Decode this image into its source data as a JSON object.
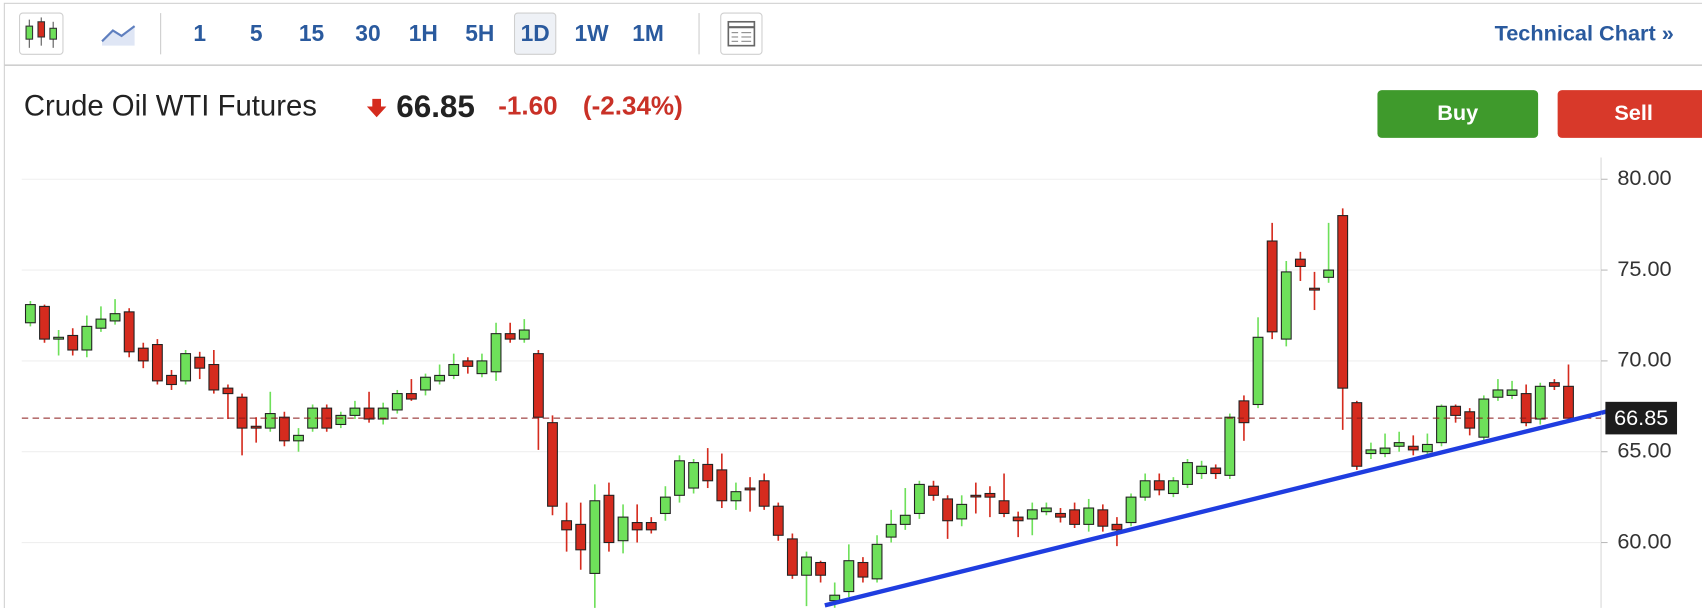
{
  "toolbar": {
    "intervals": [
      "1",
      "5",
      "15",
      "30",
      "1H",
      "5H",
      "1D",
      "1W",
      "1M"
    ],
    "active": "1D",
    "link": "Technical Chart »"
  },
  "header": {
    "name": "Crude Oil WTI Futures",
    "price": "66.85",
    "change": "-1.60",
    "change_pct": "(-2.34%)"
  },
  "buttons": {
    "buy": "Buy",
    "sell": "Sell"
  },
  "chart_data": {
    "type": "candlestick",
    "up_color": "#6ee05a",
    "down_color": "#d52b1e",
    "ylim": [
      56.4,
      81.2
    ],
    "yticks": [
      {
        "value": 60,
        "label": "60.00"
      },
      {
        "value": 65,
        "label": "65.00"
      },
      {
        "value": 70,
        "label": "70.00"
      },
      {
        "value": 75,
        "label": "75.00"
      },
      {
        "value": 80,
        "label": "80.00"
      }
    ],
    "grid": true,
    "last_price": 66.85,
    "trendline": {
      "x": [
        56.3,
        113.6
      ],
      "y": [
        56.54,
        67.58
      ],
      "color": "#1f3de0"
    },
    "open": [
      72.1,
      73.0,
      71.2,
      71.4,
      70.6,
      71.8,
      72.2,
      72.7,
      70.7,
      70.9,
      69.2,
      68.9,
      70.2,
      69.8,
      68.5,
      68.0,
      66.4,
      66.3,
      66.9,
      65.6,
      66.3,
      67.4,
      66.5,
      67.0,
      67.4,
      66.8,
      67.3,
      68.2,
      68.4,
      68.9,
      69.2,
      70.0,
      69.3,
      69.4,
      71.5,
      71.2,
      70.4,
      66.6,
      61.2,
      61.0,
      58.3,
      62.6,
      60.1,
      61.1,
      61.1,
      61.6,
      62.6,
      63.0,
      64.3,
      64.0,
      62.3,
      63.0,
      63.4,
      62.0,
      60.2,
      58.2,
      58.9,
      56.8,
      57.3,
      58.9,
      58.0,
      60.3,
      61.0,
      61.6,
      63.1,
      62.4,
      61.3,
      62.6,
      62.7,
      62.3,
      61.4,
      61.3,
      61.7,
      61.6,
      61.8,
      61.0,
      61.8,
      61.0,
      61.1,
      62.5,
      63.4,
      62.7,
      63.2,
      63.8,
      64.1,
      63.7,
      67.8,
      67.6,
      76.6,
      71.2,
      75.6,
      74.0,
      74.6,
      78.0,
      67.7,
      64.9,
      64.9,
      65.3,
      65.3,
      65.0,
      65.5,
      67.5,
      67.2,
      65.8,
      68.0,
      68.1,
      68.2,
      66.8,
      68.8,
      68.6
    ],
    "high": [
      73.3,
      73.1,
      71.7,
      71.8,
      72.5,
      73.0,
      73.4,
      72.9,
      71.0,
      71.2,
      69.5,
      70.6,
      70.5,
      70.6,
      68.7,
      68.2,
      66.9,
      68.3,
      67.2,
      66.3,
      67.6,
      67.6,
      67.2,
      67.8,
      68.3,
      67.7,
      68.4,
      69.0,
      69.3,
      69.8,
      70.4,
      70.2,
      70.4,
      72.1,
      72.1,
      72.3,
      70.6,
      67.0,
      62.2,
      62.2,
      63.2,
      63.3,
      62.1,
      62.1,
      61.4,
      63.1,
      64.8,
      64.6,
      65.2,
      64.9,
      63.3,
      63.6,
      63.8,
      62.2,
      60.5,
      59.5,
      59.0,
      57.8,
      59.9,
      59.2,
      60.4,
      61.8,
      63.0,
      63.4,
      63.4,
      62.6,
      62.6,
      63.3,
      63.1,
      63.8,
      61.7,
      62.2,
      62.2,
      61.9,
      62.2,
      62.4,
      62.1,
      61.4,
      62.7,
      63.8,
      63.8,
      63.6,
      64.6,
      64.5,
      64.3,
      67.1,
      68.1,
      72.4,
      77.6,
      75.5,
      76.0,
      74.9,
      77.6,
      78.4,
      67.8,
      65.5,
      66.0,
      66.1,
      65.9,
      66.0,
      67.6,
      67.6,
      67.4,
      68.1,
      69.0,
      68.9,
      68.7,
      68.8,
      69.0,
      69.8
    ],
    "low": [
      71.9,
      71.0,
      70.3,
      70.3,
      70.2,
      71.6,
      72.0,
      70.2,
      69.6,
      68.7,
      68.4,
      68.7,
      69.0,
      68.2,
      66.8,
      64.8,
      65.5,
      66.1,
      65.3,
      65.0,
      66.1,
      66.1,
      66.3,
      66.8,
      66.6,
      66.5,
      67.1,
      67.8,
      68.1,
      68.7,
      69.0,
      69.3,
      69.1,
      68.9,
      71.0,
      71.0,
      65.1,
      61.5,
      59.5,
      58.5,
      56.0,
      59.5,
      59.4,
      60.0,
      60.5,
      61.2,
      62.2,
      62.7,
      63.0,
      61.9,
      61.8,
      61.7,
      61.8,
      60.1,
      58.0,
      56.5,
      57.8,
      56.4,
      57.0,
      57.8,
      57.8,
      60.0,
      60.7,
      61.3,
      62.3,
      60.2,
      60.9,
      61.6,
      61.4,
      61.4,
      60.3,
      60.4,
      61.5,
      61.1,
      60.8,
      60.6,
      60.6,
      59.8,
      60.9,
      62.3,
      62.6,
      62.5,
      63.0,
      63.5,
      63.5,
      63.5,
      65.6,
      67.4,
      71.2,
      70.8,
      74.4,
      72.8,
      74.3,
      66.2,
      64.0,
      64.6,
      64.7,
      65.0,
      64.8,
      64.8,
      65.3,
      66.6,
      65.9,
      65.6,
      67.8,
      67.9,
      66.4,
      66.5,
      68.4,
      66.8
    ],
    "close": [
      73.1,
      71.2,
      71.3,
      70.6,
      71.9,
      72.3,
      72.6,
      70.5,
      70.0,
      68.9,
      68.7,
      70.4,
      69.6,
      68.4,
      68.2,
      66.3,
      66.3,
      67.1,
      65.6,
      65.9,
      67.4,
      66.3,
      67.0,
      67.4,
      66.8,
      67.4,
      68.2,
      67.9,
      69.1,
      69.2,
      69.8,
      69.7,
      70.0,
      71.5,
      71.2,
      71.7,
      66.9,
      62.0,
      60.7,
      59.6,
      62.3,
      60.0,
      61.4,
      60.7,
      60.7,
      62.5,
      64.5,
      64.4,
      63.4,
      62.3,
      62.8,
      62.9,
      62.0,
      60.4,
      58.2,
      59.2,
      58.2,
      57.1,
      59.0,
      58.1,
      59.9,
      61.0,
      61.5,
      63.2,
      62.6,
      61.2,
      62.1,
      62.55,
      62.5,
      61.6,
      61.2,
      61.8,
      61.9,
      61.4,
      61.0,
      61.9,
      60.9,
      60.7,
      62.5,
      63.4,
      62.9,
      63.4,
      64.4,
      64.2,
      63.8,
      66.9,
      66.6,
      71.3,
      71.6,
      74.9,
      75.2,
      73.9,
      75.0,
      68.5,
      64.2,
      65.1,
      65.2,
      65.5,
      65.1,
      65.4,
      67.5,
      67.0,
      66.3,
      67.9,
      68.4,
      68.4,
      66.6,
      68.6,
      68.6,
      66.85
    ]
  }
}
